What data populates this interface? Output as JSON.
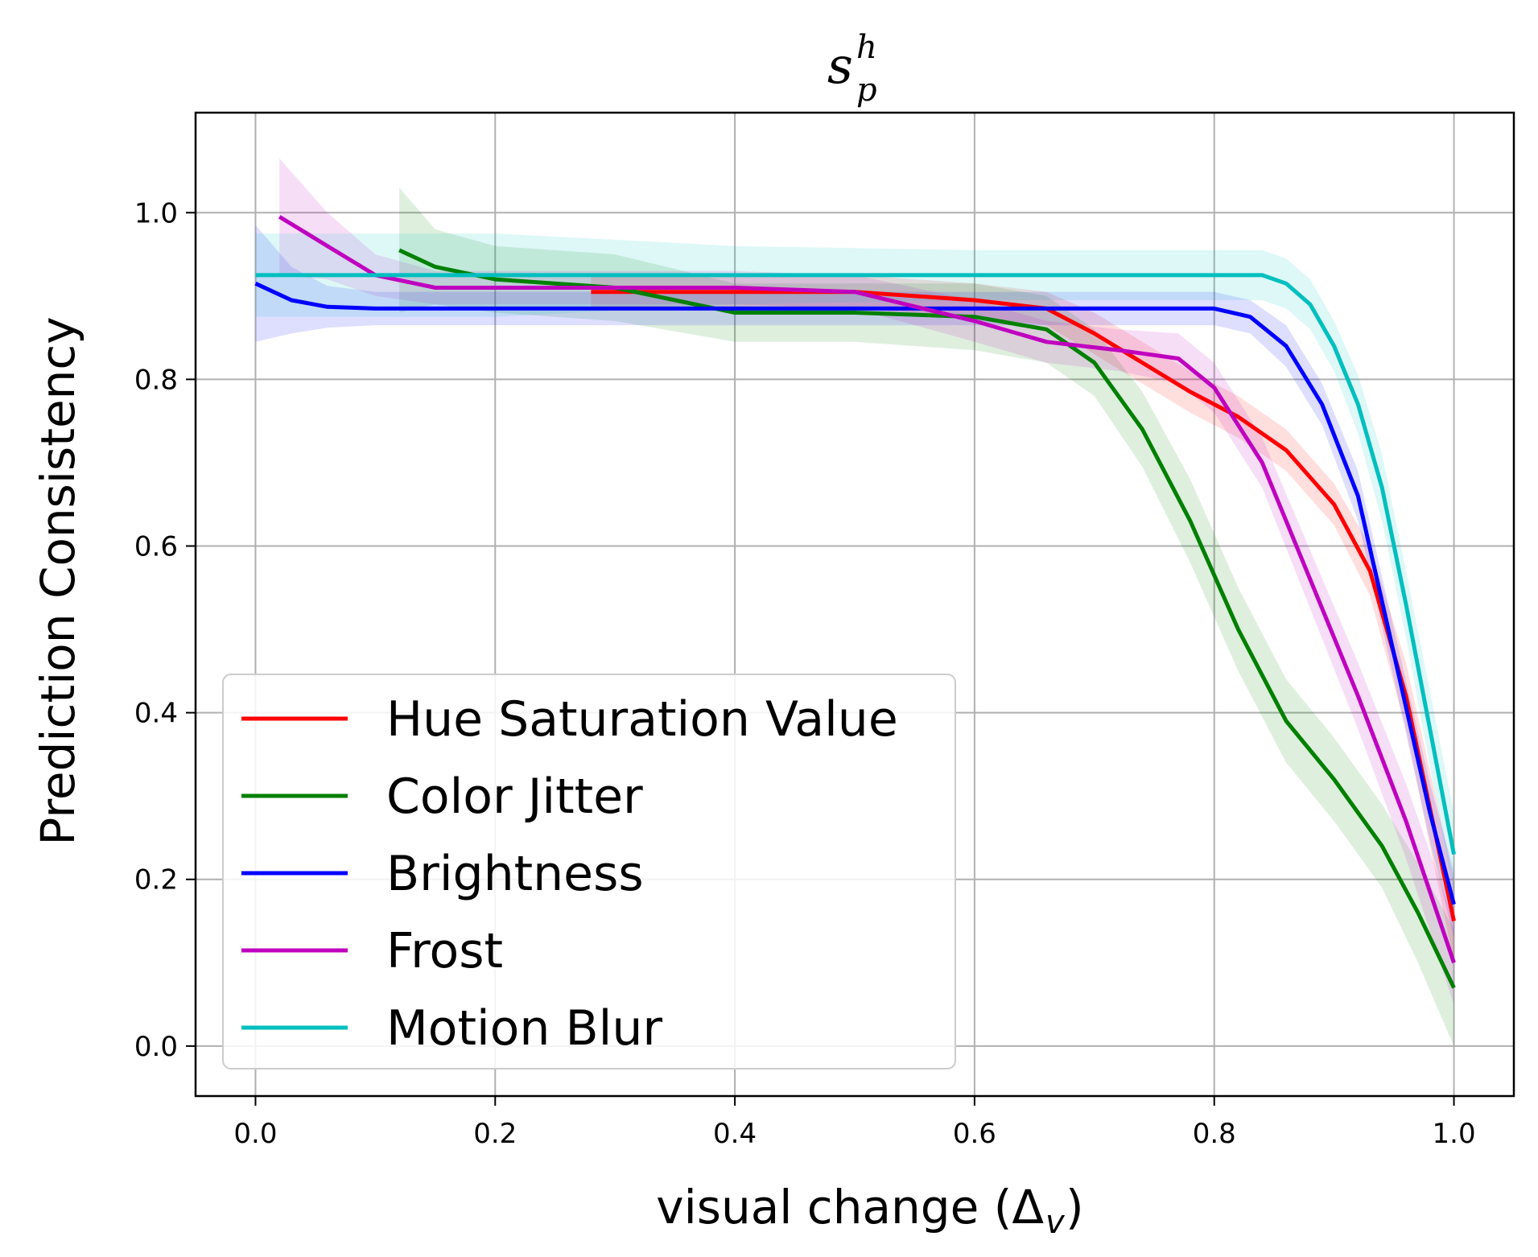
{
  "chart_data": {
    "type": "line",
    "title_main": "s",
    "title_sup": "h",
    "title_sub": "p",
    "xlabel": "visual change (Δ",
    "xlabel_sub": "v",
    "xlabel_close": ")",
    "ylabel": "Prediction Consistency",
    "xlim": [
      -0.05,
      1.05
    ],
    "ylim": [
      -0.06,
      1.12
    ],
    "xticks": [
      0.0,
      0.2,
      0.4,
      0.6,
      0.8,
      1.0
    ],
    "xtick_labels": [
      "0.0",
      "0.2",
      "0.4",
      "0.6",
      "0.8",
      "1.0"
    ],
    "yticks": [
      0.0,
      0.2,
      0.4,
      0.6,
      0.8,
      1.0
    ],
    "ytick_labels": [
      "0.0",
      "0.2",
      "0.4",
      "0.6",
      "0.8",
      "1.0"
    ],
    "grid": true,
    "legend_position": "lower-left",
    "series": [
      {
        "name": "Hue Saturation Value",
        "color": "#ff0000",
        "x": [
          0.28,
          0.4,
          0.5,
          0.6,
          0.66,
          0.7,
          0.74,
          0.78,
          0.82,
          0.86,
          0.9,
          0.93,
          0.96,
          1.0
        ],
        "y": [
          0.905,
          0.905,
          0.905,
          0.895,
          0.885,
          0.855,
          0.82,
          0.785,
          0.755,
          0.715,
          0.65,
          0.57,
          0.42,
          0.15
        ],
        "band": [
          0.02,
          0.02,
          0.02,
          0.02,
          0.02,
          0.025,
          0.025,
          0.025,
          0.025,
          0.025,
          0.025,
          0.03,
          0.04,
          0.05
        ]
      },
      {
        "name": "Color Jitter",
        "color": "#008000",
        "x": [
          0.12,
          0.15,
          0.2,
          0.3,
          0.4,
          0.5,
          0.6,
          0.66,
          0.7,
          0.74,
          0.78,
          0.82,
          0.86,
          0.9,
          0.94,
          0.97,
          1.0
        ],
        "y": [
          0.955,
          0.935,
          0.92,
          0.91,
          0.88,
          0.88,
          0.875,
          0.86,
          0.82,
          0.74,
          0.63,
          0.5,
          0.39,
          0.32,
          0.24,
          0.16,
          0.07
        ],
        "band": [
          0.075,
          0.045,
          0.04,
          0.04,
          0.035,
          0.035,
          0.04,
          0.04,
          0.04,
          0.045,
          0.05,
          0.05,
          0.05,
          0.05,
          0.05,
          0.06,
          0.07
        ]
      },
      {
        "name": "Brightness",
        "color": "#0000ff",
        "x": [
          0.0,
          0.03,
          0.06,
          0.1,
          0.3,
          0.5,
          0.7,
          0.8,
          0.83,
          0.86,
          0.89,
          0.92,
          0.95,
          0.98,
          1.0
        ],
        "y": [
          0.915,
          0.895,
          0.887,
          0.885,
          0.885,
          0.885,
          0.885,
          0.885,
          0.875,
          0.84,
          0.77,
          0.66,
          0.47,
          0.28,
          0.17
        ],
        "band": [
          0.07,
          0.04,
          0.025,
          0.02,
          0.02,
          0.02,
          0.02,
          0.02,
          0.02,
          0.025,
          0.025,
          0.03,
          0.03,
          0.035,
          0.04
        ]
      },
      {
        "name": "Frost",
        "color": "#bf00bf",
        "x": [
          0.02,
          0.06,
          0.1,
          0.15,
          0.2,
          0.3,
          0.4,
          0.5,
          0.6,
          0.66,
          0.72,
          0.77,
          0.8,
          0.84,
          0.88,
          0.92,
          0.96,
          1.0
        ],
        "y": [
          0.995,
          0.96,
          0.925,
          0.91,
          0.91,
          0.91,
          0.91,
          0.905,
          0.87,
          0.845,
          0.835,
          0.825,
          0.79,
          0.7,
          0.56,
          0.42,
          0.27,
          0.1
        ],
        "band": [
          0.07,
          0.04,
          0.025,
          0.02,
          0.02,
          0.02,
          0.02,
          0.02,
          0.025,
          0.025,
          0.025,
          0.03,
          0.03,
          0.03,
          0.035,
          0.04,
          0.045,
          0.05
        ]
      },
      {
        "name": "Motion Blur",
        "color": "#00bfbf",
        "x": [
          0.0,
          0.2,
          0.4,
          0.6,
          0.8,
          0.84,
          0.86,
          0.88,
          0.9,
          0.92,
          0.94,
          0.96,
          0.98,
          1.0
        ],
        "y": [
          0.925,
          0.925,
          0.925,
          0.925,
          0.925,
          0.925,
          0.915,
          0.89,
          0.84,
          0.77,
          0.67,
          0.53,
          0.38,
          0.23
        ],
        "band": [
          0.05,
          0.05,
          0.035,
          0.03,
          0.03,
          0.03,
          0.03,
          0.03,
          0.03,
          0.035,
          0.04,
          0.04,
          0.045,
          0.05
        ]
      }
    ]
  }
}
